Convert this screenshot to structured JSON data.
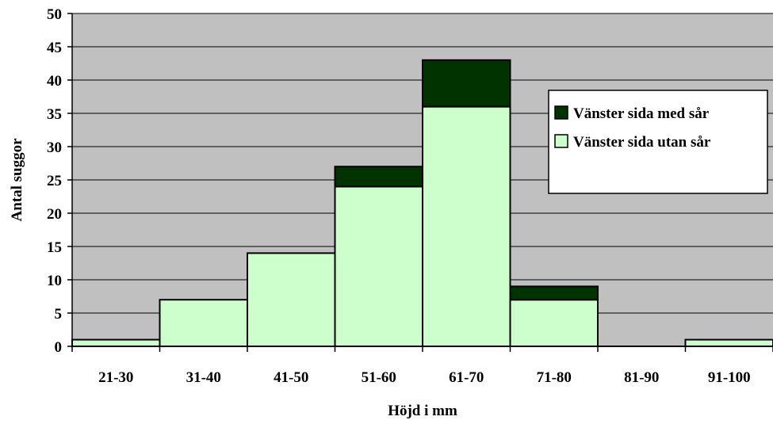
{
  "chart_data": {
    "type": "bar",
    "stacked": true,
    "categories": [
      "21-30",
      "31-40",
      "41-50",
      "51-60",
      "61-70",
      "71-80",
      "81-90",
      "91-100"
    ],
    "series": [
      {
        "name": "Vänster sida utan sår",
        "values": [
          1,
          7,
          14,
          24,
          36,
          7,
          0,
          1
        ],
        "color": "#ccffcc"
      },
      {
        "name": "Vänster sida med sår",
        "values": [
          0,
          0,
          0,
          3,
          7,
          2,
          0,
          0
        ],
        "color": "#003300"
      }
    ],
    "xlabel": "Höjd i mm",
    "ylabel": "Antal suggor",
    "ylim": [
      0,
      50
    ],
    "yticks": [
      "0",
      "5",
      "10",
      "15",
      "20",
      "25",
      "30",
      "35",
      "40",
      "45",
      "50"
    ],
    "grid": true,
    "plot_background": "#c0c0c0",
    "legend_position": "right",
    "legend_order": [
      "Vänster sida med sår",
      "Vänster sida utan sår"
    ]
  }
}
